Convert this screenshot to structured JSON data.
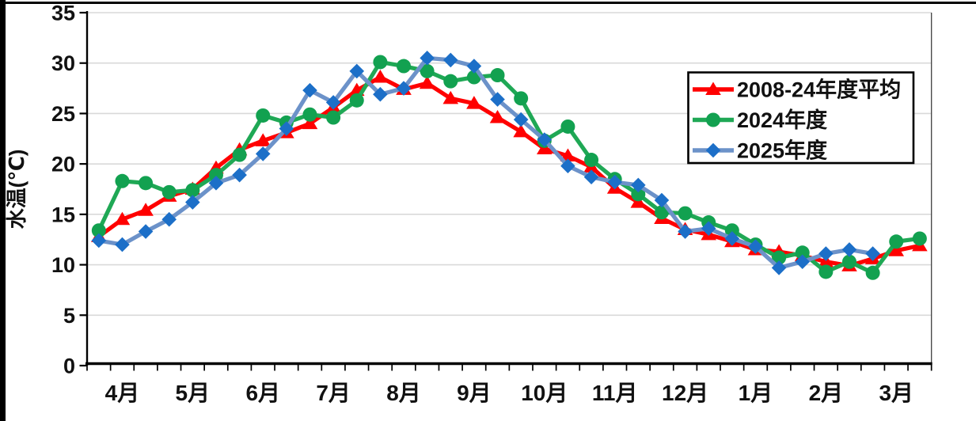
{
  "page": {
    "background": "#FFFFFF",
    "edge_color": "#000000"
  },
  "chart_data": {
    "type": "line",
    "title": "",
    "ylabel": "水温(℃)",
    "ylim": [
      0,
      35
    ],
    "yticks": [
      0,
      5,
      10,
      15,
      20,
      25,
      30,
      35
    ],
    "grid": true,
    "gridline_color": "#D9D9D9",
    "axis_color": "#000000",
    "legend_position": "top-right",
    "x_months": [
      "4月",
      "5月",
      "6月",
      "7月",
      "8月",
      "9月",
      "10月",
      "11月",
      "12月",
      "1月",
      "2月",
      "3月"
    ],
    "points_per_month": 3,
    "series": [
      {
        "name": "2008-24年度平均",
        "marker": "triangle",
        "color": "#FF0000",
        "line_color": "#FF0000",
        "values": [
          12.8,
          14.5,
          15.4,
          16.8,
          17.5,
          19.6,
          21.4,
          22.3,
          23.1,
          24.0,
          25.6,
          27.3,
          28.6,
          27.4,
          28.0,
          26.5,
          26.0,
          24.6,
          23.2,
          21.5,
          20.8,
          19.7,
          17.6,
          16.2,
          14.6,
          13.5,
          13.0,
          12.3,
          11.5,
          11.3,
          10.9,
          10.3,
          9.9,
          10.6,
          11.4,
          11.9
        ]
      },
      {
        "name": "2024年度",
        "marker": "circle",
        "color": "#12A150",
        "line_color": "#1FA855",
        "values": [
          13.4,
          18.3,
          18.1,
          17.2,
          17.4,
          18.9,
          20.9,
          24.8,
          24.1,
          24.9,
          24.6,
          26.3,
          30.1,
          29.7,
          29.2,
          28.2,
          28.6,
          28.8,
          26.5,
          22.3,
          23.7,
          20.4,
          18.5,
          17.0,
          15.2,
          15.1,
          14.2,
          13.4,
          12.0,
          10.7,
          11.2,
          9.3,
          10.3,
          9.2,
          12.3,
          12.6
        ]
      },
      {
        "name": "2025年度",
        "marker": "diamond",
        "color": "#1C6FC8",
        "line_color": "#6C92C9",
        "values": [
          12.4,
          12.0,
          13.3,
          14.5,
          16.2,
          18.1,
          18.9,
          21.0,
          23.5,
          27.3,
          26.1,
          29.2,
          26.9,
          27.5,
          30.5,
          30.3,
          29.7,
          26.4,
          24.4,
          22.4,
          19.8,
          18.7,
          18.2,
          17.9,
          16.4,
          13.3,
          13.6,
          12.6,
          11.8,
          9.7,
          10.3,
          11.1,
          11.5,
          11.1
        ]
      }
    ]
  }
}
